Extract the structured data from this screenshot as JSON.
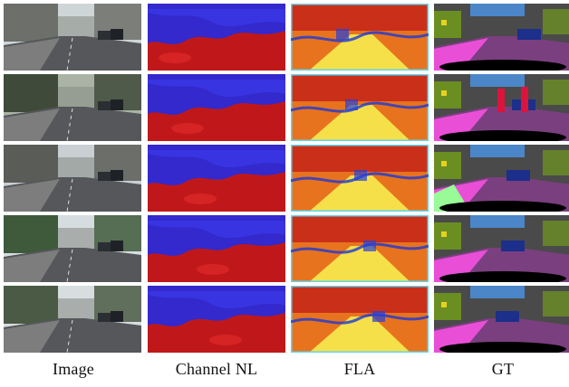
{
  "figure": {
    "columns": [
      {
        "key": "image",
        "label": "Image"
      },
      {
        "key": "channel_nl",
        "label": "Channel NL"
      },
      {
        "key": "fla",
        "label": "FLA"
      },
      {
        "key": "gt",
        "label": "GT"
      }
    ],
    "row_count": 5
  },
  "colors": {
    "heat_red": "#c0181a",
    "heat_blue": "#2b2ad6",
    "fla_yellow": "#f6e04a",
    "fla_orange": "#e8731e",
    "fla_cyan": "#5fd6f0",
    "gt_road": "#7a3f7f",
    "gt_sidewalk": "#e84fd6",
    "gt_building": "#4a4a4a",
    "gt_vegetation": "#6b8e23",
    "gt_car": "#1c2f8a",
    "gt_sky": "#4a86c8",
    "gt_person": "#dc143c",
    "gt_terrain": "#98fb98",
    "gt_sign": "#e6d21e"
  }
}
